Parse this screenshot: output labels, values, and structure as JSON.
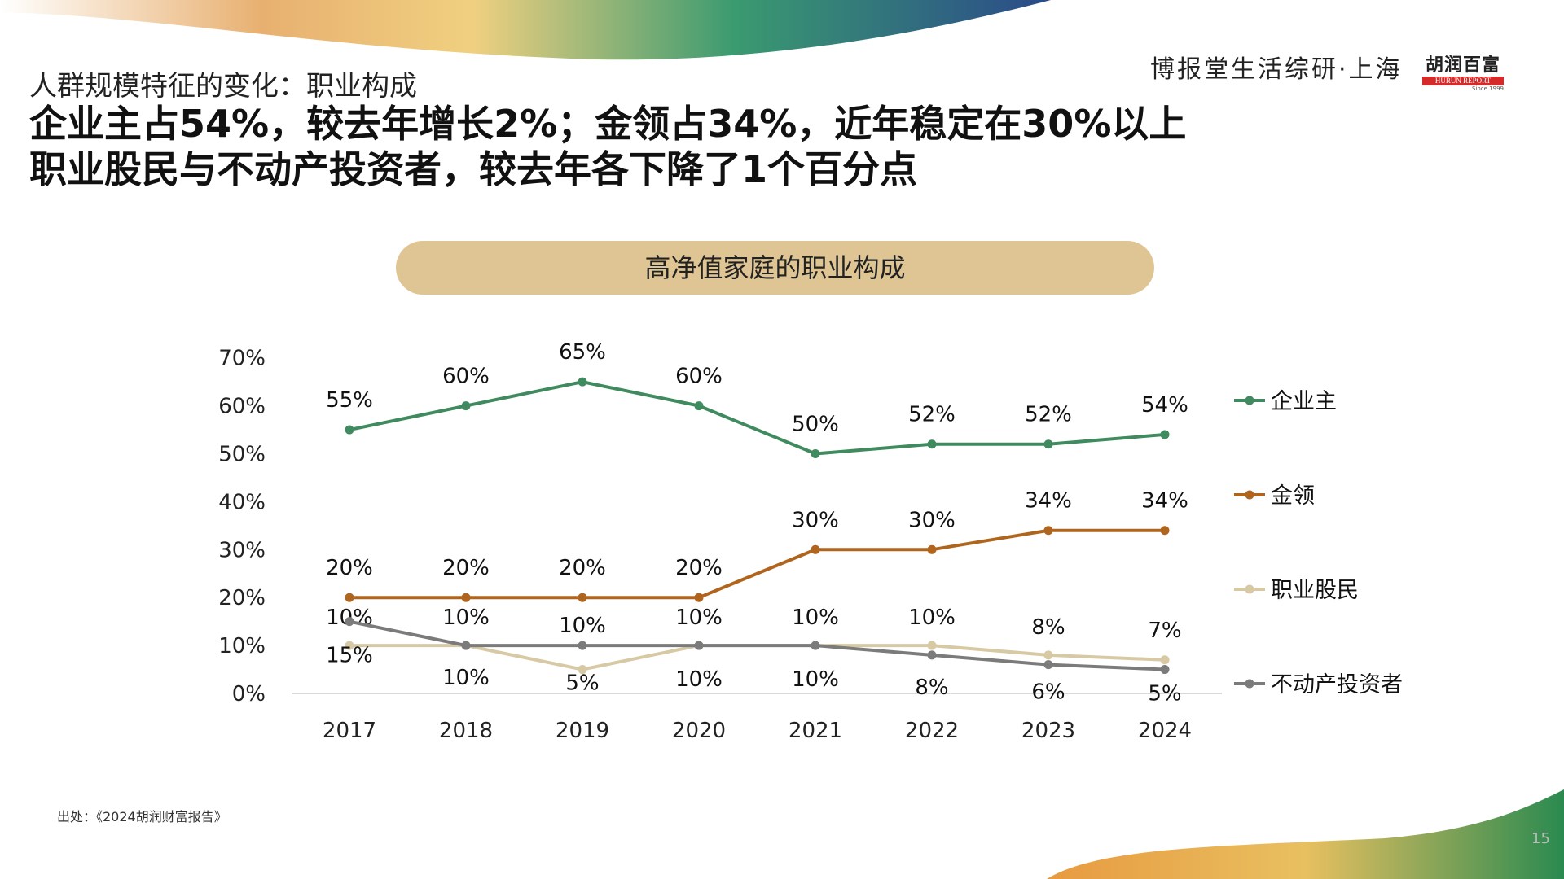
{
  "header": {
    "subtitle": "人群规模特征的变化：职业构成",
    "headline_1": "企业主占54%，较去年增长2%；金领占34%，近年稳定在30%以上",
    "headline_2": "职业股民与不动产投资者，较去年各下降了1个百分点",
    "brand": "博报堂生活综研·上海",
    "logo_text": "胡润百富",
    "logo_sub": "HURUN REPORT",
    "logo_since": "Since 1999"
  },
  "footer": {
    "source": "出处：《2024胡润财富报告》",
    "page": "15"
  },
  "chart_data": {
    "type": "line",
    "title": "高净值家庭的职业构成",
    "categories": [
      "2017",
      "2018",
      "2019",
      "2020",
      "2021",
      "2022",
      "2023",
      "2024"
    ],
    "y_ticks": [
      "0%",
      "10%",
      "20%",
      "30%",
      "40%",
      "50%",
      "60%",
      "70%"
    ],
    "ylim": [
      0,
      70
    ],
    "grid": false,
    "legend": "right",
    "series": [
      {
        "name": "企业主",
        "color": "#3f8a5e",
        "values": [
          55,
          60,
          65,
          60,
          50,
          52,
          52,
          54
        ],
        "labels": [
          "55%",
          "60%",
          "65%",
          "60%",
          "50%",
          "52%",
          "52%",
          "54%"
        ]
      },
      {
        "name": "金领",
        "color": "#b0651e",
        "values": [
          20,
          20,
          20,
          20,
          30,
          30,
          34,
          34
        ],
        "labels": [
          "20%",
          "20%",
          "20%",
          "20%",
          "30%",
          "30%",
          "34%",
          "34%"
        ]
      },
      {
        "name": "职业股民",
        "color": "#d8c9a5",
        "values": [
          10,
          10,
          5,
          10,
          10,
          10,
          8,
          7
        ],
        "labels": [
          "10%",
          "10%",
          "5%",
          "10%",
          "10%",
          "10%",
          "8%",
          "7%"
        ]
      },
      {
        "name": "不动产投资者",
        "color": "#7b7b7b",
        "values": [
          15,
          10,
          10,
          10,
          10,
          8,
          6,
          5
        ],
        "labels": [
          "15%",
          "10%",
          "10%",
          "10%",
          "10%",
          "8%",
          "6%",
          "5%"
        ]
      }
    ]
  }
}
